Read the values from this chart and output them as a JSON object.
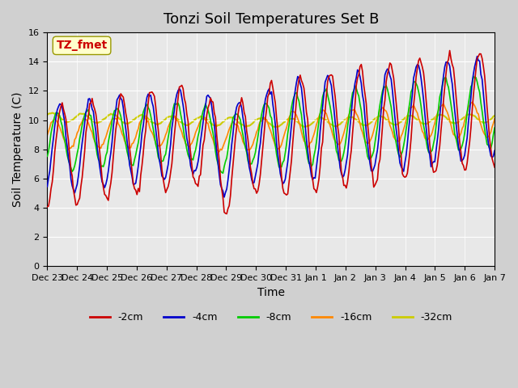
{
  "title": "Tonzi Soil Temperatures Set B",
  "xlabel": "Time",
  "ylabel": "Soil Temperature (C)",
  "ylim": [
    0,
    16
  ],
  "yticks": [
    0,
    2,
    4,
    6,
    8,
    10,
    12,
    14,
    16
  ],
  "xtick_labels": [
    "Dec 23",
    "Dec 24",
    "Dec 25",
    "Dec 26",
    "Dec 27",
    "Dec 28",
    "Dec 29",
    "Dec 30",
    "Dec 31",
    "Jan 1",
    "Jan 2",
    "Jan 3",
    "Jan 4",
    "Jan 5",
    "Jan 6",
    "Jan 7"
  ],
  "legend_labels": [
    "-2cm",
    "-4cm",
    "-8cm",
    "-16cm",
    "-32cm"
  ],
  "legend_colors": [
    "#cc0000",
    "#0000cc",
    "#00cc00",
    "#ff8800",
    "#cccc00"
  ],
  "annotation_text": "TZ_fmet",
  "annotation_color": "#cc0000",
  "annotation_bg": "#ffffcc",
  "plot_bg": "#e8e8e8",
  "fig_bg": "#d0d0d0",
  "title_fontsize": 13,
  "label_fontsize": 10
}
